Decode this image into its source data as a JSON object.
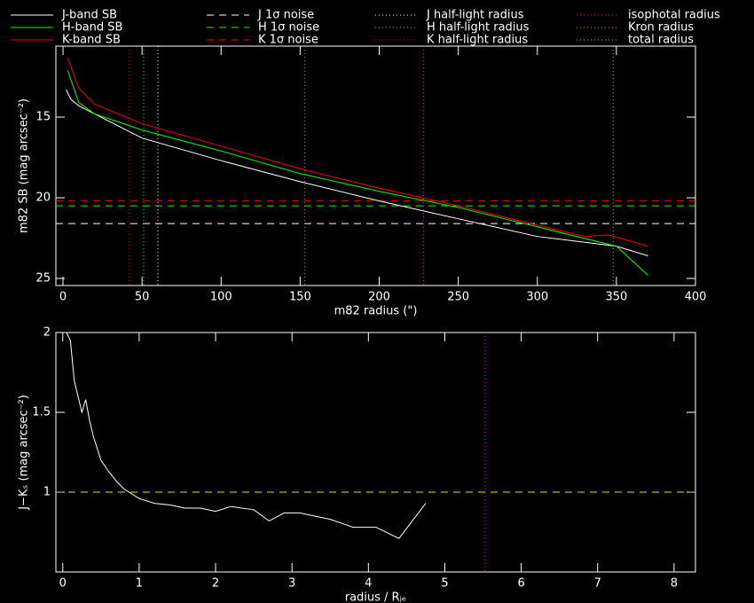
{
  "chart_data": [
    {
      "type": "line",
      "xlabel": "m82 radius (\")",
      "ylabel": "m82 SB (mag arcsec⁻²)",
      "xlim": [
        -4.5,
        400
      ],
      "ylim": [
        25.44,
        10.6
      ],
      "xticks": [
        0,
        50,
        100,
        150,
        200,
        250,
        300,
        350,
        400
      ],
      "yticks": [
        15,
        20,
        25
      ],
      "series": [
        {
          "name": "J-band SB",
          "color": "#ffffff",
          "style": "solid",
          "x": [
            2,
            5,
            10,
            20,
            50,
            100,
            150,
            200,
            250,
            300,
            350,
            370
          ],
          "values": [
            13.3,
            13.9,
            14.3,
            14.8,
            16.3,
            17.7,
            19.0,
            20.2,
            21.3,
            22.4,
            23.0,
            23.6
          ]
        },
        {
          "name": "H-band SB",
          "color": "#00ff00",
          "style": "solid",
          "x": [
            3,
            10,
            20,
            50,
            100,
            150,
            200,
            250,
            300,
            350,
            370
          ],
          "values": [
            12.1,
            14.1,
            14.8,
            15.8,
            17.1,
            18.5,
            19.6,
            20.6,
            21.8,
            23.0,
            24.8
          ]
        },
        {
          "name": "K-band SB",
          "color": "#ff0000",
          "style": "solid",
          "x": [
            3,
            10,
            20,
            50,
            100,
            150,
            200,
            250,
            300,
            330,
            345,
            370
          ],
          "values": [
            11.3,
            13.2,
            14.2,
            15.4,
            16.8,
            18.2,
            19.4,
            20.5,
            21.7,
            22.4,
            22.3,
            23.0
          ]
        }
      ],
      "hlines": [
        {
          "name": "J 1σ noise",
          "color": "#ffffff",
          "style": "dashed",
          "value": 21.6
        },
        {
          "name": "H 1σ noise",
          "color": "#00ff00",
          "style": "dashed",
          "value": 20.5
        },
        {
          "name": "K 1σ noise",
          "color": "#ff0000",
          "style": "dashed",
          "value": 20.2
        }
      ],
      "vlines": [
        {
          "name": "J half-light radius",
          "color": "#ffffff",
          "style": "dotted",
          "value": 60
        },
        {
          "name": "H half-light radius",
          "color": "#00ff00",
          "style": "dotted",
          "value": 51
        },
        {
          "name": "K half-light radius",
          "color": "#ff0000",
          "style": "dotted",
          "value": 42
        },
        {
          "name": "isophotal radius",
          "color": "#ff00ff",
          "style": "dotted",
          "value": 228
        },
        {
          "name": "Kron radius",
          "color": "#ff8c00",
          "style": "dotted",
          "value": 153
        },
        {
          "name": "total radius",
          "color": "#00e5e5",
          "style": "dotted",
          "value": 348
        }
      ]
    },
    {
      "type": "line",
      "xlabel": "radius / Rⱼₑ",
      "ylabel": "J−Kₛ (mag arcsec⁻²)",
      "xlim": [
        -0.09,
        8.28
      ],
      "ylim": [
        0.5,
        2.0
      ],
      "xticks": [
        0,
        1,
        2,
        3,
        4,
        5,
        6,
        7,
        8
      ],
      "yticks": [
        1,
        1.5,
        2
      ],
      "series": [
        {
          "color": "#ffffff",
          "style": "solid",
          "x": [
            0.05,
            0.1,
            0.15,
            0.2,
            0.25,
            0.3,
            0.35,
            0.4,
            0.5,
            0.6,
            0.7,
            0.8,
            1.0,
            1.2,
            1.4,
            1.6,
            1.8,
            2.0,
            2.2,
            2.5,
            2.7,
            2.9,
            3.1,
            3.5,
            3.8,
            4.1,
            4.4,
            4.75
          ],
          "values": [
            2.0,
            1.95,
            1.7,
            1.6,
            1.5,
            1.58,
            1.45,
            1.35,
            1.2,
            1.13,
            1.07,
            1.02,
            0.96,
            0.93,
            0.92,
            0.9,
            0.9,
            0.88,
            0.91,
            0.89,
            0.82,
            0.87,
            0.87,
            0.83,
            0.78,
            0.78,
            0.71,
            0.93
          ]
        }
      ],
      "hlines": [
        {
          "color": "#e5e500",
          "style": "dashed",
          "value": 1.0
        }
      ],
      "vlines": [
        {
          "color": "#ff00ff",
          "style": "dotted",
          "value": 5.53
        }
      ]
    }
  ]
}
